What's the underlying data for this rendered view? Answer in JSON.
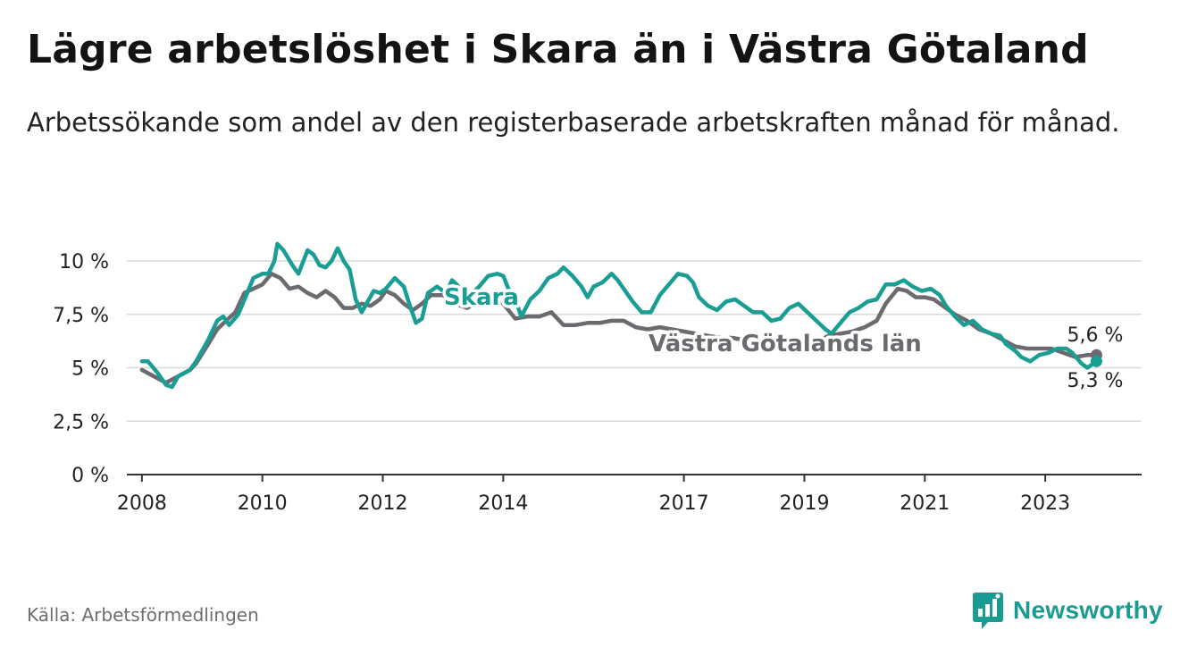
{
  "header": {
    "title": "Lägre arbetslöshet i Skara än i Västra Götaland",
    "subtitle": "Arbetssökande som andel av den registerbaserade arbetskraften månad för månad."
  },
  "footer": {
    "source": "Källa: Arbetsförmedlingen",
    "brand": "Newsworthy"
  },
  "colors": {
    "skara": "#1a9e94",
    "region": "#6d6a6f",
    "grid": "#d9d9d9",
    "axis": "#333333",
    "brand": "#1a9b92"
  },
  "chart_data": {
    "type": "line",
    "title": "Lägre arbetslöshet i Skara än i Västra Götaland",
    "xlabel": "",
    "ylabel": "",
    "ylim": [
      0,
      10
    ],
    "xlim": [
      2007.75,
      2024.6
    ],
    "grid": true,
    "yticks": [
      {
        "value": 0,
        "label": "0 %"
      },
      {
        "value": 2.5,
        "label": "2,5 %"
      },
      {
        "value": 5,
        "label": "5 %"
      },
      {
        "value": 7.5,
        "label": "7,5 %"
      },
      {
        "value": 10,
        "label": "10 %"
      }
    ],
    "xticks": [
      {
        "value": 2008,
        "label": "2008"
      },
      {
        "value": 2010,
        "label": "2010"
      },
      {
        "value": 2012,
        "label": "2012"
      },
      {
        "value": 2014,
        "label": "2014"
      },
      {
        "value": 2017,
        "label": "2017"
      },
      {
        "value": 2019,
        "label": "2019"
      },
      {
        "value": 2021,
        "label": "2021"
      },
      {
        "value": 2023,
        "label": "2023"
      }
    ],
    "series": [
      {
        "name": "Västra Götalands län",
        "label": "Västra Götalands län",
        "end_label": "5,6 %",
        "points": [
          [
            2008.0,
            4.9
          ],
          [
            2008.2,
            4.6
          ],
          [
            2008.4,
            4.3
          ],
          [
            2008.6,
            4.6
          ],
          [
            2008.8,
            4.9
          ],
          [
            2008.9,
            5.2
          ],
          [
            2009.1,
            6.1
          ],
          [
            2009.25,
            6.8
          ],
          [
            2009.4,
            7.2
          ],
          [
            2009.55,
            7.6
          ],
          [
            2009.7,
            8.5
          ],
          [
            2009.85,
            8.7
          ],
          [
            2010.0,
            8.9
          ],
          [
            2010.15,
            9.4
          ],
          [
            2010.3,
            9.2
          ],
          [
            2010.45,
            8.7
          ],
          [
            2010.6,
            8.8
          ],
          [
            2010.75,
            8.5
          ],
          [
            2010.9,
            8.3
          ],
          [
            2011.05,
            8.6
          ],
          [
            2011.2,
            8.3
          ],
          [
            2011.35,
            7.8
          ],
          [
            2011.5,
            7.8
          ],
          [
            2011.65,
            8.0
          ],
          [
            2011.8,
            7.9
          ],
          [
            2011.95,
            8.2
          ],
          [
            2012.05,
            8.6
          ],
          [
            2012.2,
            8.4
          ],
          [
            2012.35,
            8.0
          ],
          [
            2012.5,
            7.7
          ],
          [
            2012.65,
            8.0
          ],
          [
            2012.8,
            8.4
          ],
          [
            2013.0,
            8.4
          ],
          [
            2013.2,
            8.0
          ],
          [
            2013.4,
            7.8
          ],
          [
            2013.6,
            8.1
          ],
          [
            2013.8,
            8.2
          ],
          [
            2014.0,
            8.0
          ],
          [
            2014.2,
            7.3
          ],
          [
            2014.4,
            7.4
          ],
          [
            2014.6,
            7.4
          ],
          [
            2014.8,
            7.6
          ],
          [
            2015.0,
            7.0
          ],
          [
            2015.2,
            7.0
          ],
          [
            2015.4,
            7.1
          ],
          [
            2015.6,
            7.1
          ],
          [
            2015.8,
            7.2
          ],
          [
            2016.0,
            7.2
          ],
          [
            2016.2,
            6.9
          ],
          [
            2016.4,
            6.8
          ],
          [
            2016.6,
            6.9
          ],
          [
            2016.8,
            6.8
          ],
          [
            2017.0,
            6.7
          ],
          [
            2017.2,
            6.6
          ],
          [
            2017.4,
            6.5
          ],
          [
            2017.6,
            6.4
          ],
          [
            2017.8,
            6.4
          ],
          [
            2018.0,
            6.3
          ],
          [
            2018.2,
            6.2
          ],
          [
            2018.4,
            6.1
          ],
          [
            2018.6,
            6.0
          ],
          [
            2018.8,
            6.0
          ],
          [
            2019.0,
            6.1
          ],
          [
            2019.2,
            6.2
          ],
          [
            2019.4,
            6.5
          ],
          [
            2019.6,
            6.6
          ],
          [
            2019.8,
            6.7
          ],
          [
            2020.0,
            6.9
          ],
          [
            2020.2,
            7.2
          ],
          [
            2020.35,
            8.0
          ],
          [
            2020.55,
            8.7
          ],
          [
            2020.7,
            8.6
          ],
          [
            2020.85,
            8.3
          ],
          [
            2021.0,
            8.3
          ],
          [
            2021.15,
            8.2
          ],
          [
            2021.3,
            7.9
          ],
          [
            2021.5,
            7.5
          ],
          [
            2021.7,
            7.2
          ],
          [
            2021.9,
            6.8
          ],
          [
            2022.1,
            6.6
          ],
          [
            2022.3,
            6.3
          ],
          [
            2022.5,
            6.0
          ],
          [
            2022.7,
            5.9
          ],
          [
            2022.9,
            5.9
          ],
          [
            2023.1,
            5.9
          ],
          [
            2023.3,
            5.7
          ],
          [
            2023.5,
            5.5
          ],
          [
            2023.7,
            5.6
          ],
          [
            2023.85,
            5.6
          ]
        ]
      },
      {
        "name": "Skara",
        "label": "Skara",
        "end_label": "5,3 %",
        "points": [
          [
            2008.0,
            5.3
          ],
          [
            2008.1,
            5.3
          ],
          [
            2008.25,
            4.8
          ],
          [
            2008.4,
            4.2
          ],
          [
            2008.5,
            4.1
          ],
          [
            2008.6,
            4.6
          ],
          [
            2008.8,
            4.9
          ],
          [
            2008.9,
            5.3
          ],
          [
            2009.1,
            6.3
          ],
          [
            2009.25,
            7.2
          ],
          [
            2009.35,
            7.4
          ],
          [
            2009.45,
            7.0
          ],
          [
            2009.6,
            7.5
          ],
          [
            2009.75,
            8.5
          ],
          [
            2009.85,
            9.2
          ],
          [
            2010.0,
            9.4
          ],
          [
            2010.1,
            9.4
          ],
          [
            2010.2,
            10.0
          ],
          [
            2010.25,
            10.8
          ],
          [
            2010.35,
            10.5
          ],
          [
            2010.5,
            9.8
          ],
          [
            2010.6,
            9.4
          ],
          [
            2010.75,
            10.5
          ],
          [
            2010.85,
            10.3
          ],
          [
            2010.95,
            9.8
          ],
          [
            2011.05,
            9.7
          ],
          [
            2011.15,
            10.0
          ],
          [
            2011.25,
            10.6
          ],
          [
            2011.35,
            10.0
          ],
          [
            2011.45,
            9.6
          ],
          [
            2011.55,
            8.2
          ],
          [
            2011.65,
            7.6
          ],
          [
            2011.75,
            8.1
          ],
          [
            2011.85,
            8.6
          ],
          [
            2011.95,
            8.5
          ],
          [
            2012.05,
            8.7
          ],
          [
            2012.2,
            9.2
          ],
          [
            2012.35,
            8.8
          ],
          [
            2012.45,
            7.9
          ],
          [
            2012.55,
            7.1
          ],
          [
            2012.65,
            7.3
          ],
          [
            2012.75,
            8.5
          ],
          [
            2012.9,
            8.8
          ],
          [
            2013.05,
            8.5
          ],
          [
            2013.15,
            9.1
          ],
          [
            2013.3,
            8.7
          ],
          [
            2013.45,
            8.4
          ],
          [
            2013.6,
            8.8
          ],
          [
            2013.75,
            9.3
          ],
          [
            2013.9,
            9.4
          ],
          [
            2014.0,
            9.3
          ],
          [
            2014.1,
            8.6
          ],
          [
            2014.2,
            8.2
          ],
          [
            2014.3,
            7.4
          ],
          [
            2014.45,
            8.2
          ],
          [
            2014.6,
            8.6
          ],
          [
            2014.75,
            9.2
          ],
          [
            2014.9,
            9.4
          ],
          [
            2015.0,
            9.7
          ],
          [
            2015.15,
            9.3
          ],
          [
            2015.3,
            8.8
          ],
          [
            2015.4,
            8.3
          ],
          [
            2015.5,
            8.8
          ],
          [
            2015.65,
            9.0
          ],
          [
            2015.8,
            9.4
          ],
          [
            2015.9,
            9.1
          ],
          [
            2016.0,
            8.7
          ],
          [
            2016.15,
            8.1
          ],
          [
            2016.3,
            7.6
          ],
          [
            2016.45,
            7.6
          ],
          [
            2016.6,
            8.4
          ],
          [
            2016.75,
            8.9
          ],
          [
            2016.9,
            9.4
          ],
          [
            2017.05,
            9.3
          ],
          [
            2017.15,
            9.0
          ],
          [
            2017.25,
            8.3
          ],
          [
            2017.4,
            7.9
          ],
          [
            2017.55,
            7.7
          ],
          [
            2017.7,
            8.1
          ],
          [
            2017.85,
            8.2
          ],
          [
            2018.0,
            7.9
          ],
          [
            2018.15,
            7.6
          ],
          [
            2018.3,
            7.6
          ],
          [
            2018.45,
            7.2
          ],
          [
            2018.6,
            7.3
          ],
          [
            2018.75,
            7.8
          ],
          [
            2018.9,
            8.0
          ],
          [
            2019.05,
            7.6
          ],
          [
            2019.2,
            7.2
          ],
          [
            2019.35,
            6.8
          ],
          [
            2019.45,
            6.6
          ],
          [
            2019.6,
            7.1
          ],
          [
            2019.75,
            7.6
          ],
          [
            2019.9,
            7.8
          ],
          [
            2020.05,
            8.1
          ],
          [
            2020.2,
            8.2
          ],
          [
            2020.35,
            8.9
          ],
          [
            2020.5,
            8.9
          ],
          [
            2020.65,
            9.1
          ],
          [
            2020.8,
            8.8
          ],
          [
            2020.95,
            8.6
          ],
          [
            2021.1,
            8.7
          ],
          [
            2021.25,
            8.4
          ],
          [
            2021.35,
            7.9
          ],
          [
            2021.5,
            7.4
          ],
          [
            2021.65,
            7.0
          ],
          [
            2021.8,
            7.2
          ],
          [
            2021.95,
            6.8
          ],
          [
            2022.1,
            6.6
          ],
          [
            2022.25,
            6.5
          ],
          [
            2022.35,
            6.1
          ],
          [
            2022.5,
            5.8
          ],
          [
            2022.6,
            5.5
          ],
          [
            2022.75,
            5.3
          ],
          [
            2022.9,
            5.6
          ],
          [
            2023.05,
            5.7
          ],
          [
            2023.2,
            5.9
          ],
          [
            2023.35,
            5.9
          ],
          [
            2023.45,
            5.7
          ],
          [
            2023.6,
            5.2
          ],
          [
            2023.7,
            5.0
          ],
          [
            2023.85,
            5.3
          ]
        ]
      }
    ]
  }
}
